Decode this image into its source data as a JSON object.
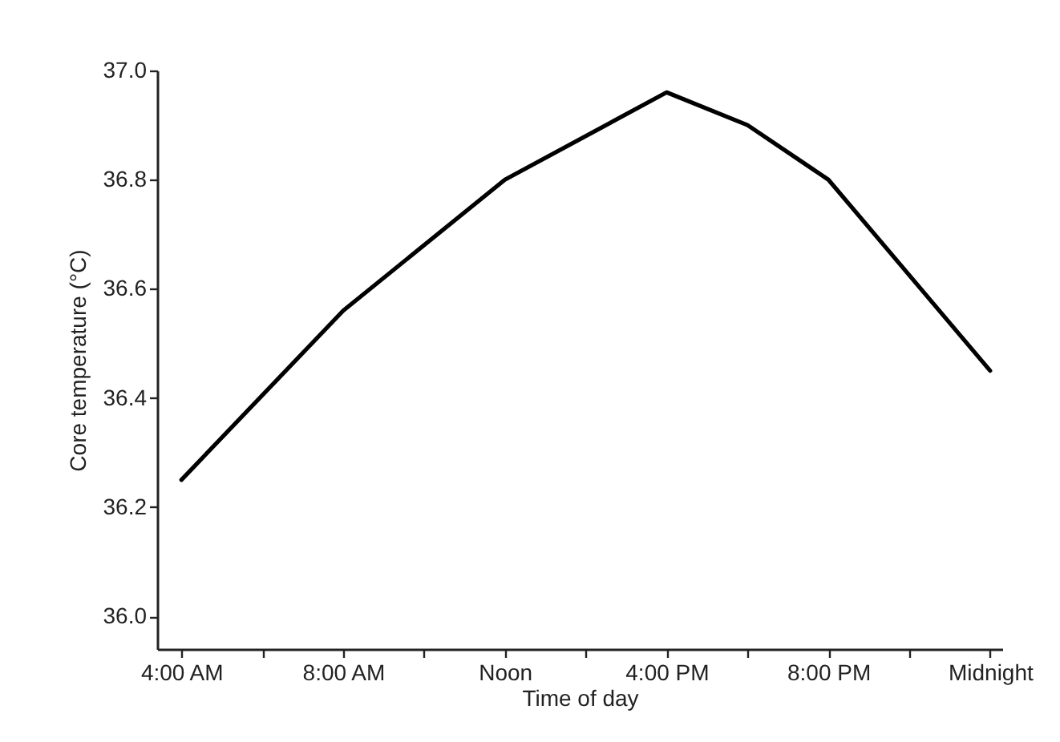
{
  "chart_data": {
    "type": "line",
    "xlabel": "Time of day",
    "ylabel": "Core temperature (°C)",
    "x": [
      4,
      8,
      12,
      16,
      18,
      20,
      24
    ],
    "series": [
      {
        "color": "#000000",
        "values": [
          36.25,
          36.56,
          36.8,
          36.96,
          36.9,
          36.8,
          36.45
        ]
      }
    ],
    "xlim": [
      3.4,
      24.3
    ],
    "xticks": [
      {
        "value": 4,
        "label": "4:00 AM"
      },
      {
        "value": 6,
        "label": null
      },
      {
        "value": 8,
        "label": "8:00 AM"
      },
      {
        "value": 10,
        "label": null
      },
      {
        "value": 12,
        "label": "Noon"
      },
      {
        "value": 14,
        "label": null
      },
      {
        "value": 16,
        "label": "4:00 PM"
      },
      {
        "value": 18,
        "label": null
      },
      {
        "value": 20,
        "label": "8:00 PM"
      },
      {
        "value": 22,
        "label": null
      },
      {
        "value": 24,
        "label": "Midnight"
      }
    ],
    "ylim": [
      35.94,
      37.0
    ],
    "yticks": [
      {
        "value": 36,
        "label": "36.0"
      },
      36.2,
      36.4,
      36.6,
      36.8,
      {
        "value": 37,
        "label": "37.0"
      }
    ],
    "grid": false
  }
}
